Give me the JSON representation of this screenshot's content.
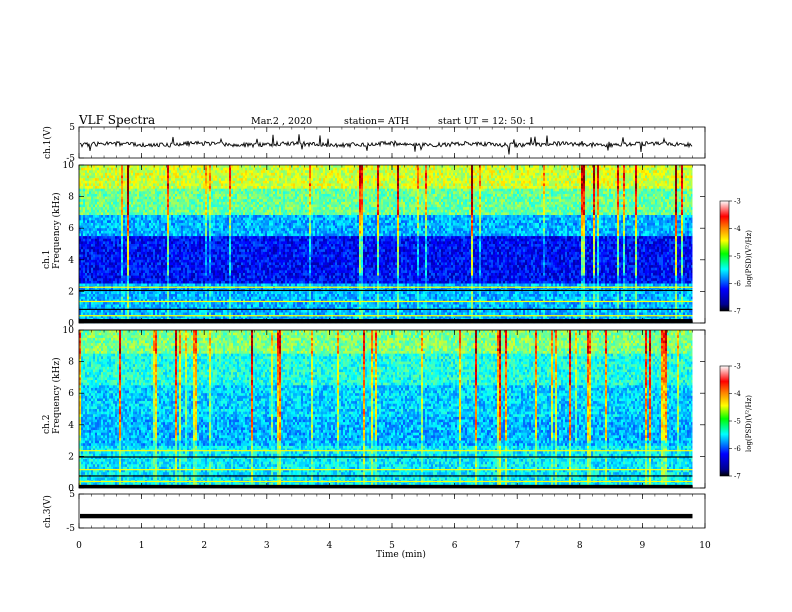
{
  "header": {
    "title": "VLF  Spectra",
    "date": "Mar.2  , 2020",
    "station": "station= ATH",
    "start": "start  UT  =    12: 50: 1"
  },
  "chart_data": [
    {
      "type": "line",
      "panel": "ch1-waveform",
      "ylabel": "ch.1(V)",
      "yticks": [
        "5",
        "-5"
      ],
      "ylim": [
        -5,
        5
      ],
      "xlim": [
        0,
        9.8
      ],
      "color": "#000000",
      "note_values": "continuous noisy trace near -0.6 V with impulsive spikes"
    },
    {
      "type": "heatmap",
      "panel": "ch1-spectrogram",
      "ylabel": "ch.1\nFrequency  (kHz)",
      "yticks": [
        "10",
        "8",
        "6",
        "4",
        "2",
        "0"
      ],
      "ylim": [
        0,
        10
      ],
      "xlim": [
        0,
        9.8
      ],
      "colorbar": {
        "label": "log(PSD)(V²/Hz)",
        "ticks": [
          "-3",
          "-4",
          "-5",
          "-6",
          "-7"
        ],
        "range": [
          -7,
          -3
        ]
      }
    },
    {
      "type": "heatmap",
      "panel": "ch2-spectrogram",
      "ylabel": "ch.2\nFrequency  (kHz)",
      "yticks": [
        "10",
        "8",
        "6",
        "4",
        "2",
        "0"
      ],
      "ylim": [
        0,
        10
      ],
      "xlim": [
        0,
        9.8
      ],
      "colorbar": {
        "label": "log(PSD)(V²/Hz)",
        "ticks": [
          "-3",
          "-4",
          "-5",
          "-6",
          "-7"
        ],
        "range": [
          -7,
          -3
        ]
      }
    },
    {
      "type": "line",
      "panel": "ch3-waveform",
      "ylabel": "ch.3(V)",
      "yticks": [
        "5",
        "-5"
      ],
      "ylim": [
        -5,
        5
      ],
      "xlim": [
        0,
        9.8
      ],
      "value_constant": -1.5,
      "color": "#000000"
    }
  ],
  "xaxis": {
    "label": "Time  (min)",
    "ticks": [
      "0",
      "1",
      "2",
      "3",
      "4",
      "5",
      "6",
      "7",
      "8",
      "9",
      "10"
    ],
    "range": [
      0,
      10
    ]
  },
  "colors": {
    "jet_lo": "#00008f",
    "jet_hi": "#800000",
    "cbar_top": "#ffffff"
  }
}
